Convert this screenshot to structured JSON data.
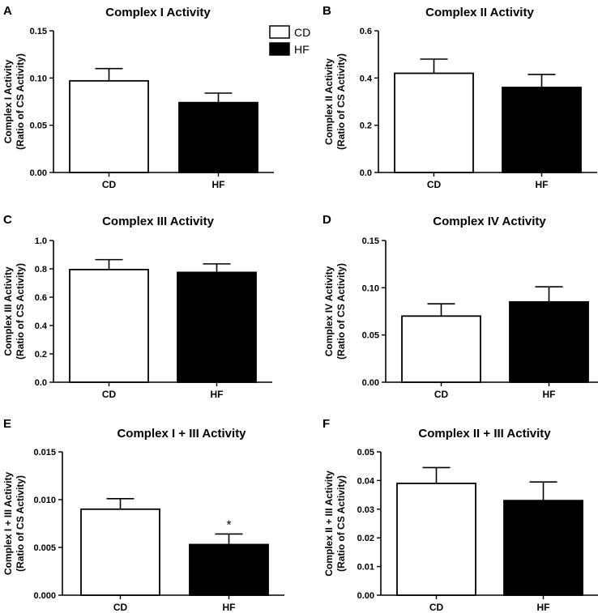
{
  "legend": [
    {
      "label": "CD",
      "fill": "#ffffff"
    },
    {
      "label": "HF",
      "fill": "#000000"
    }
  ],
  "chart_data": [
    {
      "type": "bar",
      "letter": "A",
      "title": "Complex I Activity",
      "ylabel_lines": [
        "Complex I Activity",
        "(Ratio of CS Activity)"
      ],
      "categories": [
        "CD",
        "HF"
      ],
      "values": [
        0.097,
        0.074
      ],
      "errors": [
        0.013,
        0.01
      ],
      "ylim": [
        0,
        0.15
      ],
      "yticks": [
        0,
        0.05,
        0.1,
        0.15
      ],
      "ytick_labels": [
        "0.00",
        "0.05",
        "0.10",
        "0.15"
      ],
      "colors": [
        "#ffffff",
        "#000000"
      ],
      "annotations": [
        "",
        ""
      ]
    },
    {
      "type": "bar",
      "letter": "B",
      "title": "Complex II Activity",
      "ylabel_lines": [
        "Complex II Activity",
        "(Ratio of CS Activity)"
      ],
      "categories": [
        "CD",
        "HF"
      ],
      "values": [
        0.42,
        0.36
      ],
      "errors": [
        0.06,
        0.055
      ],
      "ylim": [
        0,
        0.6
      ],
      "yticks": [
        0,
        0.2,
        0.4,
        0.6
      ],
      "ytick_labels": [
        "0.0",
        "0.2",
        "0.4",
        "0.6"
      ],
      "colors": [
        "#ffffff",
        "#000000"
      ],
      "annotations": [
        "",
        ""
      ]
    },
    {
      "type": "bar",
      "letter": "C",
      "title": "Complex III  Activity",
      "ylabel_lines": [
        "Complex III Activity",
        "(Ratio of CS Activity)"
      ],
      "categories": [
        "CD",
        "HF"
      ],
      "values": [
        0.795,
        0.775
      ],
      "errors": [
        0.07,
        0.06
      ],
      "ylim": [
        0,
        1.0
      ],
      "yticks": [
        0,
        0.2,
        0.4,
        0.6,
        0.8,
        1.0
      ],
      "ytick_labels": [
        "0.0",
        "0.2",
        "0.4",
        "0.6",
        "0.8",
        "1.0"
      ],
      "colors": [
        "#ffffff",
        "#000000"
      ],
      "annotations": [
        "",
        ""
      ]
    },
    {
      "type": "bar",
      "letter": "D",
      "title": "Complex IV Activity",
      "ylabel_lines": [
        "Complex IV Activity",
        "(Ratio of CS Activity)"
      ],
      "categories": [
        "CD",
        "HF"
      ],
      "values": [
        0.07,
        0.085
      ],
      "errors": [
        0.013,
        0.016
      ],
      "ylim": [
        0,
        0.15
      ],
      "yticks": [
        0,
        0.05,
        0.1,
        0.15
      ],
      "ytick_labels": [
        "0.00",
        "0.05",
        "0.10",
        "0.15"
      ],
      "colors": [
        "#ffffff",
        "#000000"
      ],
      "annotations": [
        "",
        ""
      ]
    },
    {
      "type": "bar",
      "letter": "E",
      "title": "Complex I + III Activity",
      "ylabel_lines": [
        "Complex I + III Activity",
        "(Ratio of CS Activity)"
      ],
      "categories": [
        "CD",
        "HF"
      ],
      "values": [
        0.009,
        0.0053
      ],
      "errors": [
        0.0011,
        0.0011
      ],
      "ylim": [
        0,
        0.015
      ],
      "yticks": [
        0,
        0.005,
        0.01,
        0.015
      ],
      "ytick_labels": [
        "0.000",
        "0.005",
        "0.010",
        "0.015"
      ],
      "colors": [
        "#ffffff",
        "#000000"
      ],
      "annotations": [
        "",
        "*"
      ]
    },
    {
      "type": "bar",
      "letter": "F",
      "title": "Complex II + III Activity",
      "ylabel_lines": [
        "Complex II + III Activity",
        "(Ratio of CS Activity)"
      ],
      "categories": [
        "CD",
        "HF"
      ],
      "values": [
        0.039,
        0.033
      ],
      "errors": [
        0.0055,
        0.0065
      ],
      "ylim": [
        0,
        0.05
      ],
      "yticks": [
        0,
        0.01,
        0.02,
        0.03,
        0.04,
        0.05
      ],
      "ytick_labels": [
        "0.00",
        "0.01",
        "0.02",
        "0.03",
        "0.04",
        "0.05"
      ],
      "colors": [
        "#ffffff",
        "#000000"
      ],
      "annotations": [
        "",
        ""
      ]
    }
  ]
}
